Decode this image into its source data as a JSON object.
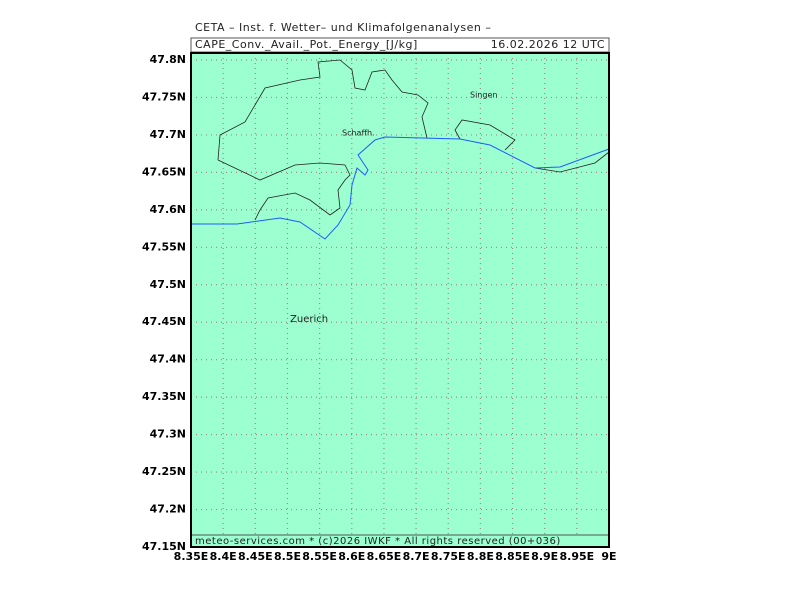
{
  "header": {
    "institute": "CETA – Inst. f. Wetter– und Klimafolgenanalysen –",
    "variable": "CAPE_Conv._Avail._Pot._Energy_[J/kg]",
    "date": "16.02.2026  12 UTC"
  },
  "axes": {
    "lat_ticks": [
      "47.8N",
      "47.75N",
      "47.7N",
      "47.65N",
      "47.6N",
      "47.55N",
      "47.5N",
      "47.45N",
      "47.4N",
      "47.35N",
      "47.3N",
      "47.25N",
      "47.2N",
      "47.15N"
    ],
    "lon_ticks": [
      "8.35E",
      "8.4E",
      "8.45E",
      "8.5E",
      "8.55E",
      "8.6E",
      "8.65E",
      "8.7E",
      "8.75E",
      "8.8E",
      "8.85E",
      "8.9E",
      "8.95E",
      "9E"
    ]
  },
  "places": [
    {
      "name": "Singen"
    },
    {
      "name": "Schaffh."
    },
    {
      "name": "Zuerich"
    }
  ],
  "footer": "meteo-services.com * (c)2026 IWKF * All rights reserved (00+036)"
}
